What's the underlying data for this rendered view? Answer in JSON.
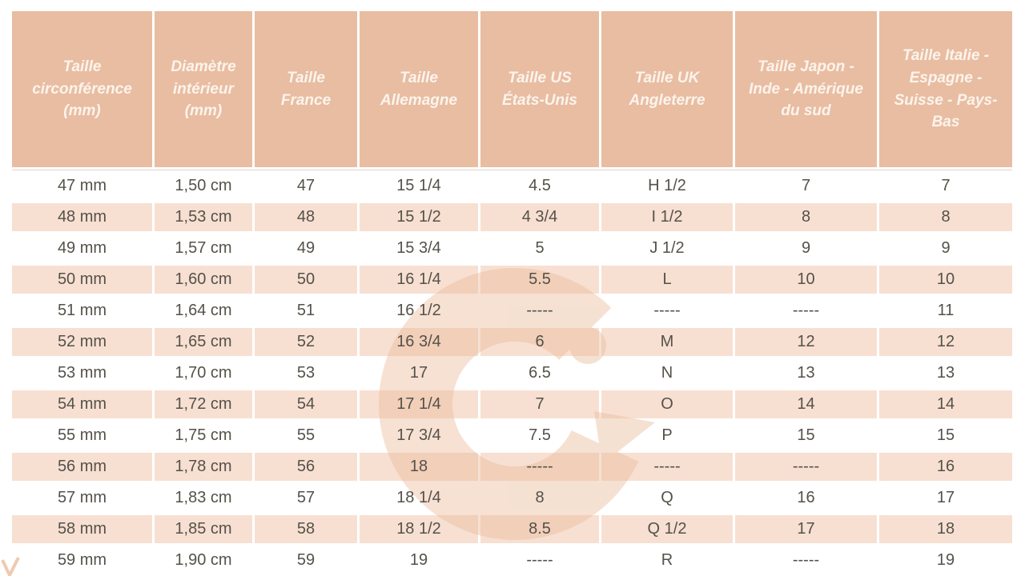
{
  "colors": {
    "header_bg": "#e9bda2",
    "header_text": "#fbf4ec",
    "row_shaded_bg": "#f7e0d2",
    "row_plain_bg": "#ffffff",
    "body_text": "#55514a",
    "watermark": "#e9b896"
  },
  "chart_data": {
    "type": "table",
    "columns": [
      "Taille circonférence (mm)",
      "Diamètre intérieur (mm)",
      "Taille France",
      "Taille Allemagne",
      "Taille US États-Unis",
      "Taille UK Angleterre",
      "Taille Japon - Inde - Amérique du sud",
      "Taille Italie - Espagne - Suisse - Pays-Bas"
    ],
    "rows": [
      [
        "47 mm",
        "1,50 cm",
        "47",
        "15 1/4",
        "4.5",
        "H 1/2",
        "7",
        "7"
      ],
      [
        "48 mm",
        "1,53 cm",
        "48",
        "15 1/2",
        "4 3/4",
        "I 1/2",
        "8",
        "8"
      ],
      [
        "49 mm",
        "1,57 cm",
        "49",
        "15 3/4",
        "5",
        "J 1/2",
        "9",
        "9"
      ],
      [
        "50 mm",
        "1,60 cm",
        "50",
        "16 1/4",
        "5.5",
        "L",
        "10",
        "10"
      ],
      [
        "51 mm",
        "1,64 cm",
        "51",
        "16 1/2",
        "-----",
        "-----",
        "-----",
        "11"
      ],
      [
        "52 mm",
        "1,65 cm",
        "52",
        "16 3/4",
        "6",
        "M",
        "12",
        "12"
      ],
      [
        "53 mm",
        "1,70 cm",
        "53",
        "17",
        "6.5",
        "N",
        "13",
        "13"
      ],
      [
        "54 mm",
        "1,72 cm",
        "54",
        "17 1/4",
        "7",
        "O",
        "14",
        "14"
      ],
      [
        "55 mm",
        "1,75 cm",
        "55",
        "17 3/4",
        "7.5",
        "P",
        "15",
        "15"
      ],
      [
        "56 mm",
        "1,78 cm",
        "56",
        "18",
        "-----",
        "-----",
        "-----",
        "16"
      ],
      [
        "57 mm",
        "1,83 cm",
        "57",
        "18 1/4",
        "8",
        "Q",
        "16",
        "17"
      ],
      [
        "58 mm",
        "1,85 cm",
        "58",
        "18 1/2",
        "8.5",
        "Q 1/2",
        "17",
        "18"
      ],
      [
        "59 mm",
        "1,90 cm",
        "59",
        "19",
        "-----",
        "R",
        "-----",
        "19"
      ]
    ],
    "layout": {
      "alternating_row_shading": true,
      "first_shaded_row_index": 1,
      "grid": "off",
      "column_separator": "white-line"
    }
  }
}
